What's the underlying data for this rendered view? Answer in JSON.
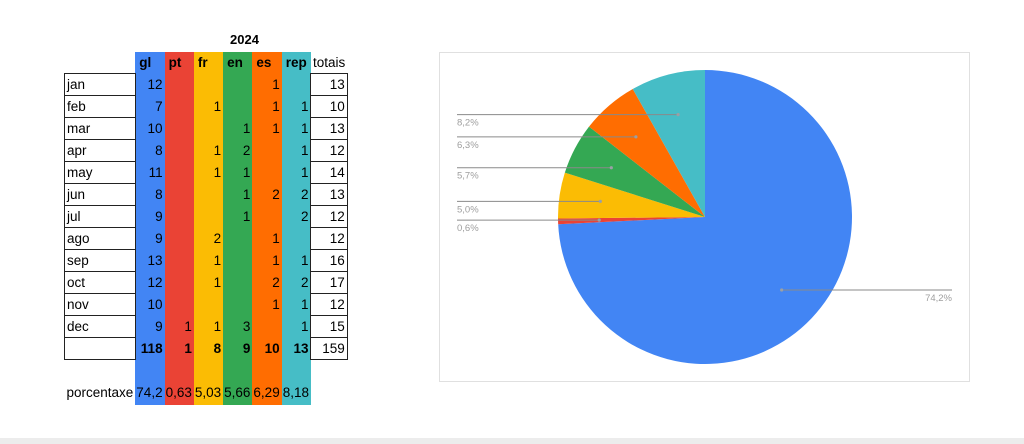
{
  "table": {
    "year": "2024",
    "headers": [
      "gl",
      "pt",
      "fr",
      "en",
      "es",
      "rep"
    ],
    "totals_header": "totais",
    "rows": [
      {
        "month": "jan",
        "values": [
          "12",
          "",
          "",
          "",
          "1",
          ""
        ],
        "total": "13"
      },
      {
        "month": "feb",
        "values": [
          "7",
          "",
          "1",
          "",
          "1",
          "1"
        ],
        "total": "10"
      },
      {
        "month": "mar",
        "values": [
          "10",
          "",
          "",
          "1",
          "1",
          "1"
        ],
        "total": "13"
      },
      {
        "month": "apr",
        "values": [
          "8",
          "",
          "1",
          "2",
          "",
          "1"
        ],
        "total": "12"
      },
      {
        "month": "may",
        "values": [
          "11",
          "",
          "1",
          "1",
          "",
          "1"
        ],
        "total": "14"
      },
      {
        "month": "jun",
        "values": [
          "8",
          "",
          "",
          "1",
          "2",
          "2"
        ],
        "total": "13"
      },
      {
        "month": "jul",
        "values": [
          "9",
          "",
          "",
          "1",
          "",
          "2"
        ],
        "total": "12"
      },
      {
        "month": "ago",
        "values": [
          "9",
          "",
          "2",
          "",
          "1",
          ""
        ],
        "total": "12"
      },
      {
        "month": "sep",
        "values": [
          "13",
          "",
          "1",
          "",
          "1",
          "1"
        ],
        "total": "16"
      },
      {
        "month": "oct",
        "values": [
          "12",
          "",
          "1",
          "",
          "2",
          "2"
        ],
        "total": "17"
      },
      {
        "month": "nov",
        "values": [
          "10",
          "",
          "",
          "",
          "1",
          "1"
        ],
        "total": "12"
      },
      {
        "month": "dec",
        "values": [
          "9",
          "1",
          "1",
          "3",
          "",
          "1"
        ],
        "total": "15"
      }
    ],
    "sums": [
      "118",
      "1",
      "8",
      "9",
      "10",
      "13"
    ],
    "grand_total": "159",
    "percent_label": "porcentaxe",
    "percents": [
      "74,2",
      "0,63",
      "5,03",
      "5,66",
      "6,29",
      "8,18"
    ]
  },
  "chart_data": {
    "type": "pie",
    "categories": [
      "gl",
      "pt",
      "fr",
      "en",
      "es",
      "rep"
    ],
    "values": [
      118,
      1,
      8,
      9,
      10,
      13
    ],
    "slice_labels": [
      "74,2%",
      "0,6%",
      "5,0%",
      "5,7%",
      "6,3%",
      "8,2%"
    ],
    "colors": [
      "#4285f4",
      "#ea4335",
      "#fbbc04",
      "#34a853",
      "#ff6d01",
      "#46bdc6"
    ],
    "start": "12 o'clock, clockwise"
  }
}
